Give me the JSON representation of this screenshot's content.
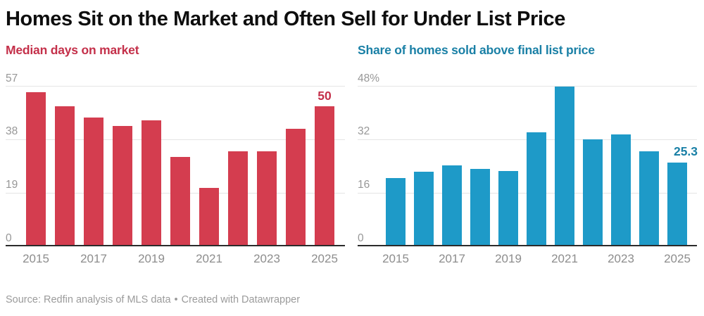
{
  "header": {
    "title": "Homes Sit on the Market and Often Sell for Under List Price"
  },
  "footer": {
    "source": "Source: Redfin analysis of MLS data",
    "separator": "•",
    "attribution": "Created with Datawrapper"
  },
  "colors": {
    "left_bar": "#d43d4f",
    "left_accent_text": "#c4304a",
    "right_bar": "#1e9ac8",
    "right_accent_text": "#1a80a6",
    "title_text": "#0e0e0e",
    "axis_tick_text": "#979797",
    "x_tick_text": "#8d8d8d",
    "gridline": "#e5e5e5",
    "baseline": "#2b2b2b",
    "footer_text": "#9b9b9b",
    "background": "#ffffff"
  },
  "chart_data": [
    {
      "id": "median-days-on-market",
      "type": "bar",
      "title": "Median days on market",
      "title_color": "#c4304a",
      "bar_color": "#d43d4f",
      "categories": [
        2015,
        2016,
        2017,
        2018,
        2019,
        2020,
        2021,
        2022,
        2023,
        2024,
        2025
      ],
      "values": [
        55,
        50,
        46,
        43,
        45,
        32,
        21,
        34,
        34,
        42,
        50
      ],
      "xlabel": "",
      "ylabel": "",
      "ylim": [
        0,
        57
      ],
      "yticks": [
        0,
        19,
        38,
        57
      ],
      "ytick_labels": [
        "0",
        "19",
        "38",
        "57"
      ],
      "x_tick_labels": [
        "2015",
        "2017",
        "2019",
        "2021",
        "2023",
        "2025"
      ],
      "grid": true,
      "legend": false,
      "annotations": [
        {
          "category": 2025,
          "text": "50",
          "color": "#c4304a"
        }
      ]
    },
    {
      "id": "share-sold-above-list",
      "type": "bar",
      "title": "Share of homes sold above final list price",
      "title_color": "#1a80a6",
      "bar_color": "#1e9ac8",
      "categories": [
        2015,
        2016,
        2017,
        2018,
        2019,
        2020,
        2021,
        2022,
        2023,
        2024,
        2025
      ],
      "values": [
        20.5,
        22.4,
        24.4,
        23.4,
        22.6,
        34.3,
        48.1,
        32.2,
        33.6,
        28.5,
        25.3
      ],
      "xlabel": "",
      "ylabel": "",
      "ylim": [
        0,
        48
      ],
      "yticks": [
        0,
        16,
        32,
        48
      ],
      "ytick_labels": [
        "0",
        "16",
        "32",
        "48%"
      ],
      "x_tick_labels": [
        "2015",
        "2017",
        "2019",
        "2021",
        "2023",
        "2025"
      ],
      "grid": true,
      "legend": false,
      "annotations": [
        {
          "category": 2025,
          "text": "25.3",
          "color": "#1a80a6"
        }
      ]
    }
  ]
}
